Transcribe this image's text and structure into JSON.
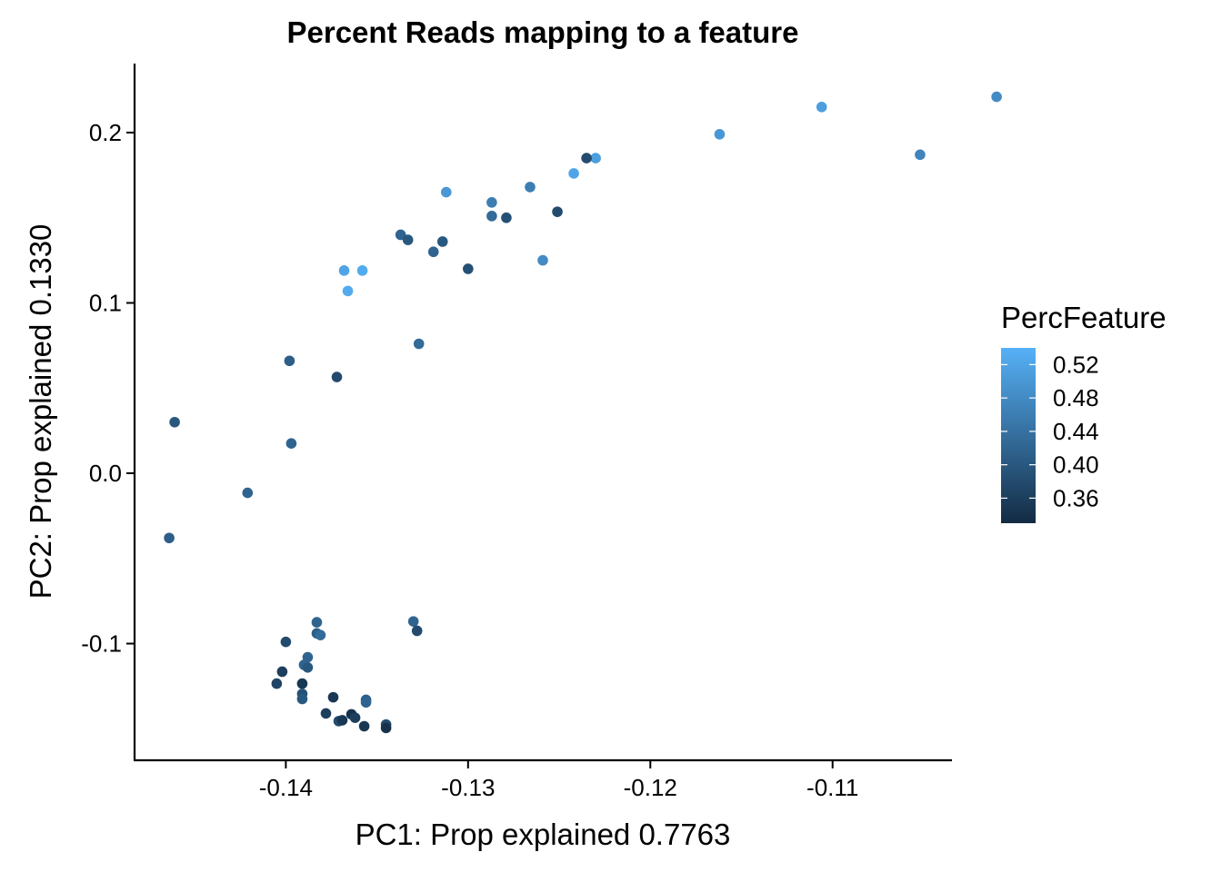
{
  "chart_data": {
    "type": "scatter",
    "title": "Percent Reads mapping to a feature",
    "xlabel": "PC1: Prop explained 0.7763",
    "ylabel": "PC2: Prop explained 0.1330",
    "xlim": [
      -0.1483,
      -0.1035
    ],
    "ylim": [
      -0.1685,
      0.2405
    ],
    "x_ticks": [
      -0.14,
      -0.13,
      -0.12,
      -0.11
    ],
    "x_tick_labels": [
      "-0.14",
      "-0.13",
      "-0.12",
      "-0.11"
    ],
    "y_ticks": [
      -0.1,
      0.0,
      0.1,
      0.2
    ],
    "y_tick_labels": [
      "-0.1",
      "0.0",
      "0.1",
      "0.2"
    ],
    "grid": false,
    "legend": {
      "title": "PercFeature",
      "placement": "right",
      "type": "colorbar",
      "range": [
        0.33,
        0.54
      ],
      "ticks": [
        0.36,
        0.4,
        0.44,
        0.48,
        0.52
      ],
      "tick_labels": [
        "0.36",
        "0.40",
        "0.44",
        "0.48",
        "0.52"
      ],
      "low_color": "#132B43",
      "high_color": "#56B1F7"
    },
    "points": [
      {
        "x": -0.101,
        "y": 0.221,
        "c": 0.48
      },
      {
        "x": -0.1106,
        "y": 0.215,
        "c": 0.51
      },
      {
        "x": -0.1052,
        "y": 0.187,
        "c": 0.47
      },
      {
        "x": -0.1162,
        "y": 0.199,
        "c": 0.5
      },
      {
        "x": -0.123,
        "y": 0.185,
        "c": 0.51
      },
      {
        "x": -0.1235,
        "y": 0.185,
        "c": 0.38
      },
      {
        "x": -0.1242,
        "y": 0.176,
        "c": 0.52
      },
      {
        "x": -0.1266,
        "y": 0.168,
        "c": 0.46
      },
      {
        "x": -0.1251,
        "y": 0.1535,
        "c": 0.38
      },
      {
        "x": -0.1259,
        "y": 0.125,
        "c": 0.48
      },
      {
        "x": -0.1287,
        "y": 0.159,
        "c": 0.46
      },
      {
        "x": -0.1287,
        "y": 0.151,
        "c": 0.43
      },
      {
        "x": -0.1279,
        "y": 0.15,
        "c": 0.39
      },
      {
        "x": -0.1312,
        "y": 0.165,
        "c": 0.5
      },
      {
        "x": -0.1314,
        "y": 0.136,
        "c": 0.4
      },
      {
        "x": -0.1319,
        "y": 0.13,
        "c": 0.42
      },
      {
        "x": -0.13,
        "y": 0.12,
        "c": 0.39
      },
      {
        "x": -0.1337,
        "y": 0.14,
        "c": 0.42
      },
      {
        "x": -0.1333,
        "y": 0.137,
        "c": 0.4
      },
      {
        "x": -0.1368,
        "y": 0.119,
        "c": 0.52
      },
      {
        "x": -0.1358,
        "y": 0.119,
        "c": 0.53
      },
      {
        "x": -0.1366,
        "y": 0.107,
        "c": 0.53
      },
      {
        "x": -0.1327,
        "y": 0.076,
        "c": 0.43
      },
      {
        "x": -0.1398,
        "y": 0.066,
        "c": 0.41
      },
      {
        "x": -0.1372,
        "y": 0.0565,
        "c": 0.38
      },
      {
        "x": -0.1461,
        "y": 0.03,
        "c": 0.4
      },
      {
        "x": -0.1397,
        "y": 0.0175,
        "c": 0.42
      },
      {
        "x": -0.1421,
        "y": -0.0115,
        "c": 0.42
      },
      {
        "x": -0.1464,
        "y": -0.038,
        "c": 0.41
      },
      {
        "x": -0.133,
        "y": -0.087,
        "c": 0.42
      },
      {
        "x": -0.1328,
        "y": -0.0925,
        "c": 0.38
      },
      {
        "x": -0.1383,
        "y": -0.0875,
        "c": 0.42
      },
      {
        "x": -0.1383,
        "y": -0.094,
        "c": 0.41
      },
      {
        "x": -0.1381,
        "y": -0.095,
        "c": 0.43
      },
      {
        "x": -0.14,
        "y": -0.099,
        "c": 0.38
      },
      {
        "x": -0.1388,
        "y": -0.108,
        "c": 0.42
      },
      {
        "x": -0.139,
        "y": -0.1125,
        "c": 0.42
      },
      {
        "x": -0.1388,
        "y": -0.114,
        "c": 0.4
      },
      {
        "x": -0.1402,
        "y": -0.1165,
        "c": 0.36
      },
      {
        "x": -0.1405,
        "y": -0.1235,
        "c": 0.37
      },
      {
        "x": -0.1391,
        "y": -0.1235,
        "c": 0.35
      },
      {
        "x": -0.1391,
        "y": -0.1295,
        "c": 0.39
      },
      {
        "x": -0.1391,
        "y": -0.1325,
        "c": 0.4
      },
      {
        "x": -0.1374,
        "y": -0.1315,
        "c": 0.35
      },
      {
        "x": -0.1356,
        "y": -0.133,
        "c": 0.41
      },
      {
        "x": -0.1356,
        "y": -0.1345,
        "c": 0.42
      },
      {
        "x": -0.1378,
        "y": -0.141,
        "c": 0.36
      },
      {
        "x": -0.1364,
        "y": -0.1415,
        "c": 0.34
      },
      {
        "x": -0.1362,
        "y": -0.1435,
        "c": 0.36
      },
      {
        "x": -0.1371,
        "y": -0.1455,
        "c": 0.38
      },
      {
        "x": -0.1369,
        "y": -0.145,
        "c": 0.35
      },
      {
        "x": -0.1357,
        "y": -0.1485,
        "c": 0.35
      },
      {
        "x": -0.1345,
        "y": -0.1475,
        "c": 0.38
      },
      {
        "x": -0.1345,
        "y": -0.1495,
        "c": 0.34
      }
    ]
  }
}
